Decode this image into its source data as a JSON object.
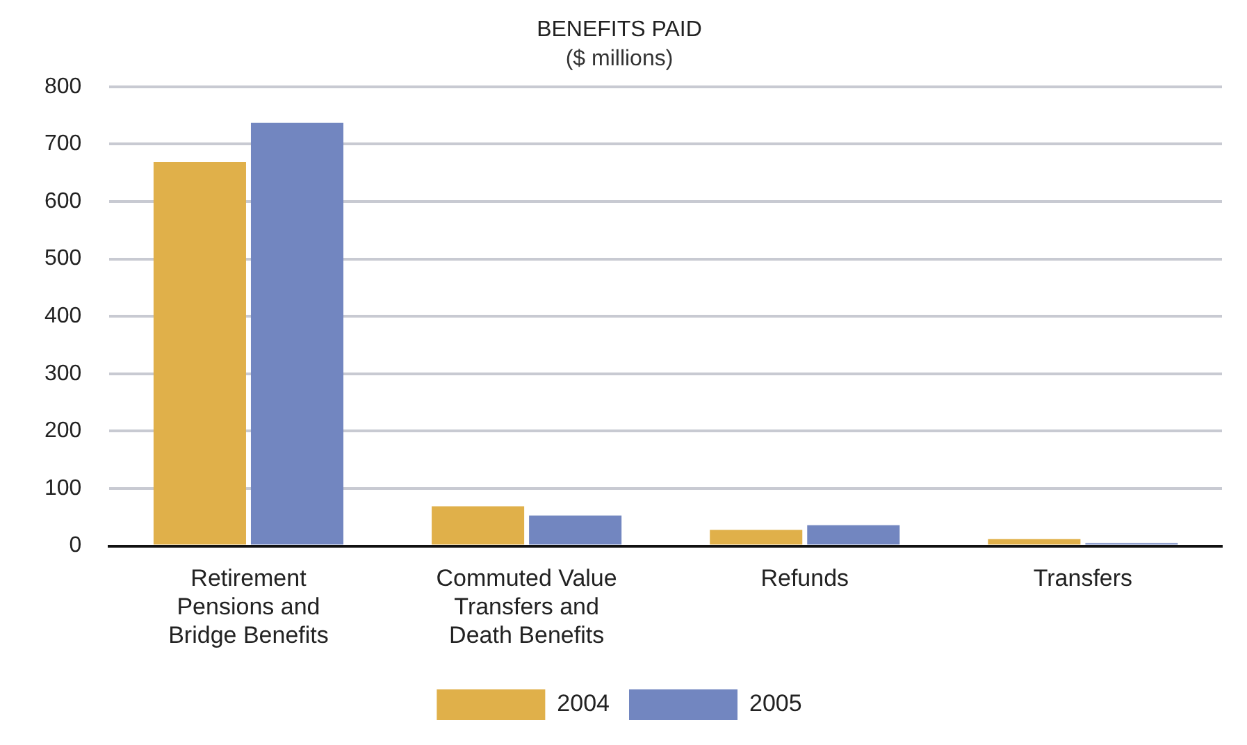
{
  "chart_data": {
    "type": "bar",
    "title": "BENEFITS PAID",
    "subtitle": "($ millions)",
    "categories": [
      "Retirement Pensions and Bridge Benefits",
      "Commuted Value Transfers and Death Benefits",
      "Refunds",
      "Transfers"
    ],
    "series": [
      {
        "name": "2004",
        "color": "#e0b04a",
        "values": [
          669,
          69,
          28,
          12
        ]
      },
      {
        "name": "2005",
        "color": "#7286c0",
        "values": [
          737,
          53,
          36,
          5
        ]
      }
    ],
    "ylim": [
      0,
      800
    ],
    "yticks": [
      0,
      100,
      200,
      300,
      400,
      500,
      600,
      700,
      800
    ],
    "grid": "y",
    "legend": "bottom"
  }
}
